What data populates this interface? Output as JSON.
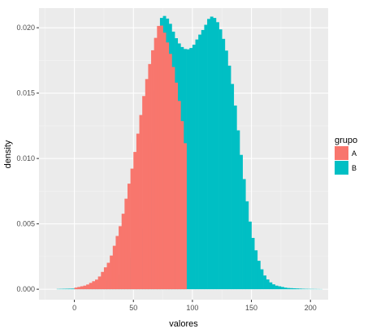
{
  "chart_data": {
    "type": "histogram",
    "xlabel": "valores",
    "ylabel": "density",
    "xlim": [
      -30,
      215
    ],
    "ylim": [
      -0.0008,
      0.0215
    ],
    "x_ticks": [
      0,
      50,
      100,
      150,
      200
    ],
    "x_tick_labels": [
      "0",
      "50",
      "100",
      "150",
      "200"
    ],
    "y_ticks": [
      0,
      0.005,
      0.01,
      0.015,
      0.02
    ],
    "y_tick_labels": [
      "0.000",
      "0.005",
      "0.010",
      "0.015",
      "0.020"
    ],
    "grid": true,
    "bin_width": 2.5,
    "bin_starts": [
      -15,
      210
    ],
    "legend": {
      "title": "grupo",
      "position": "right",
      "entries": [
        {
          "label": "A",
          "color": "#F8766D"
        },
        {
          "label": "B",
          "color": "#00BFC4"
        }
      ]
    },
    "series": [
      {
        "name": "A",
        "color": "#F8766D",
        "points": [
          [
            0,
            0.0001
          ],
          [
            10,
            0.0003
          ],
          [
            20,
            0.0008
          ],
          [
            30,
            0.0022
          ],
          [
            40,
            0.0052
          ],
          [
            50,
            0.0098
          ],
          [
            55,
            0.0126
          ],
          [
            60,
            0.0155
          ],
          [
            65,
            0.0178
          ],
          [
            70,
            0.0197
          ],
          [
            72,
            0.0204
          ],
          [
            75,
            0.02
          ],
          [
            80,
            0.0185
          ],
          [
            85,
            0.0165
          ],
          [
            90,
            0.0137
          ],
          [
            94,
            0.011
          ],
          [
            96,
            0.0095
          ]
        ]
      },
      {
        "name": "B",
        "color": "#00BFC4",
        "points": [
          [
            -15,
            2e-05
          ],
          [
            0,
            5e-05
          ],
          [
            20,
            0.0003
          ],
          [
            40,
            0.0012
          ],
          [
            55,
            0.004
          ],
          [
            65,
            0.0092
          ],
          [
            72,
            0.0204
          ],
          [
            75,
            0.021
          ],
          [
            80,
            0.0206
          ],
          [
            85,
            0.0194
          ],
          [
            90,
            0.0186
          ],
          [
            95,
            0.0183
          ],
          [
            100,
            0.0185
          ],
          [
            105,
            0.0193
          ],
          [
            110,
            0.02
          ],
          [
            115,
            0.0209
          ],
          [
            120,
            0.0207
          ],
          [
            125,
            0.0196
          ],
          [
            130,
            0.0178
          ],
          [
            135,
            0.015
          ],
          [
            140,
            0.0112
          ],
          [
            145,
            0.0075
          ],
          [
            150,
            0.0044
          ],
          [
            155,
            0.0025
          ],
          [
            160,
            0.0012
          ],
          [
            165,
            0.0006
          ],
          [
            170,
            0.0003
          ],
          [
            180,
            0.0001
          ],
          [
            195,
            3e-05
          ],
          [
            210,
            1e-05
          ]
        ]
      }
    ]
  }
}
